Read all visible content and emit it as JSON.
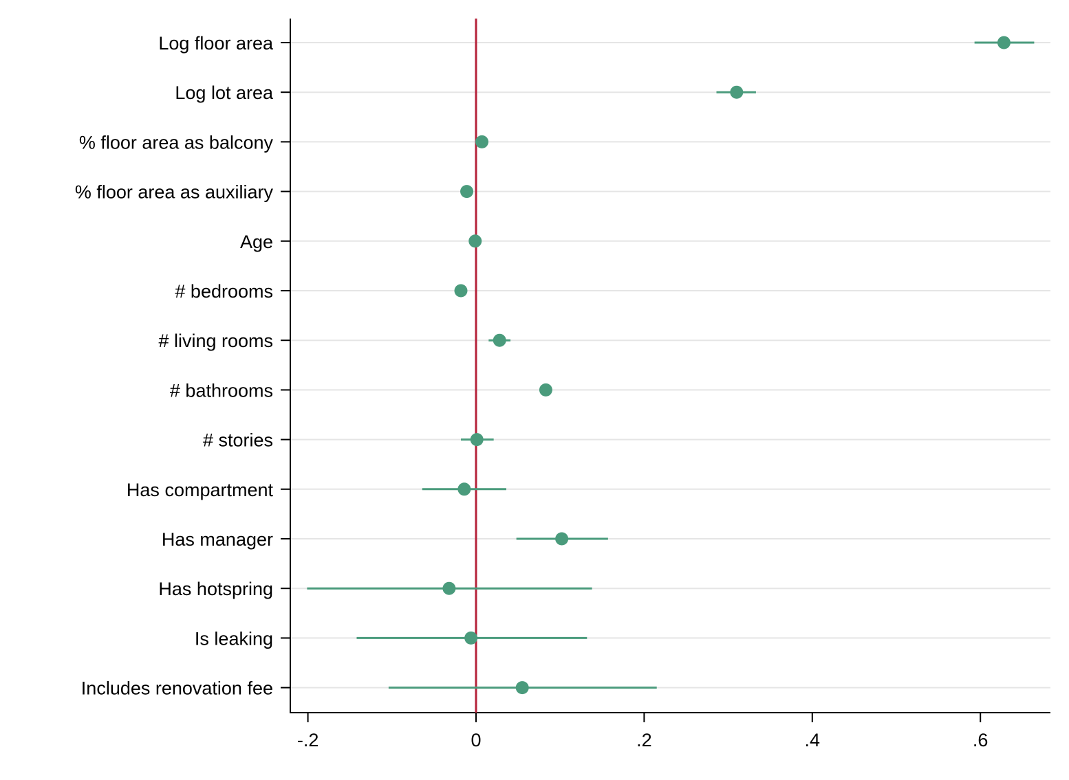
{
  "chart_data": {
    "type": "scatter",
    "subtype": "coefficient-plot",
    "title": "",
    "xlabel": "",
    "ylabel": "",
    "xlim": [
      -0.2,
      0.68
    ],
    "x_ticks": [
      {
        "value": -0.2,
        "label": "-.2"
      },
      {
        "value": 0,
        "label": "0"
      },
      {
        "value": 0.2,
        "label": ".2"
      },
      {
        "value": 0.4,
        "label": ".4"
      },
      {
        "value": 0.6,
        "label": ".6"
      }
    ],
    "reference_line": {
      "x": 0,
      "color": "#b5223a"
    },
    "grid": true,
    "legend": "none",
    "colors": {
      "marker": "#4a9b7c",
      "ci_line": "#4a9b7c",
      "reference": "#b5223a",
      "grid": "#e5e5e5",
      "axis": "#000000"
    },
    "categories": [
      "Log floor area",
      "Log lot area",
      "% floor area as balcony",
      "% floor area as auxiliary",
      "Age",
      "# bedrooms",
      "# living rooms",
      "# bathrooms",
      "# stories",
      "Has compartment",
      "Has manager",
      "Has hotspring",
      "Is leaking",
      "Includes renovation fee"
    ],
    "series": [
      {
        "estimates": [
          0.628,
          0.31,
          0.007,
          -0.011,
          -0.001,
          -0.018,
          0.028,
          0.083,
          0.001,
          -0.014,
          0.102,
          -0.032,
          -0.006,
          0.055
        ],
        "ci_low": [
          0.593,
          0.286,
          0.003,
          -0.014,
          -0.003,
          -0.021,
          0.015,
          0.078,
          -0.018,
          -0.064,
          0.048,
          -0.201,
          -0.142,
          -0.104
        ],
        "ci_high": [
          0.664,
          0.333,
          0.011,
          -0.008,
          0.001,
          -0.015,
          0.041,
          0.088,
          0.021,
          0.036,
          0.157,
          0.138,
          0.132,
          0.215
        ]
      }
    ]
  }
}
